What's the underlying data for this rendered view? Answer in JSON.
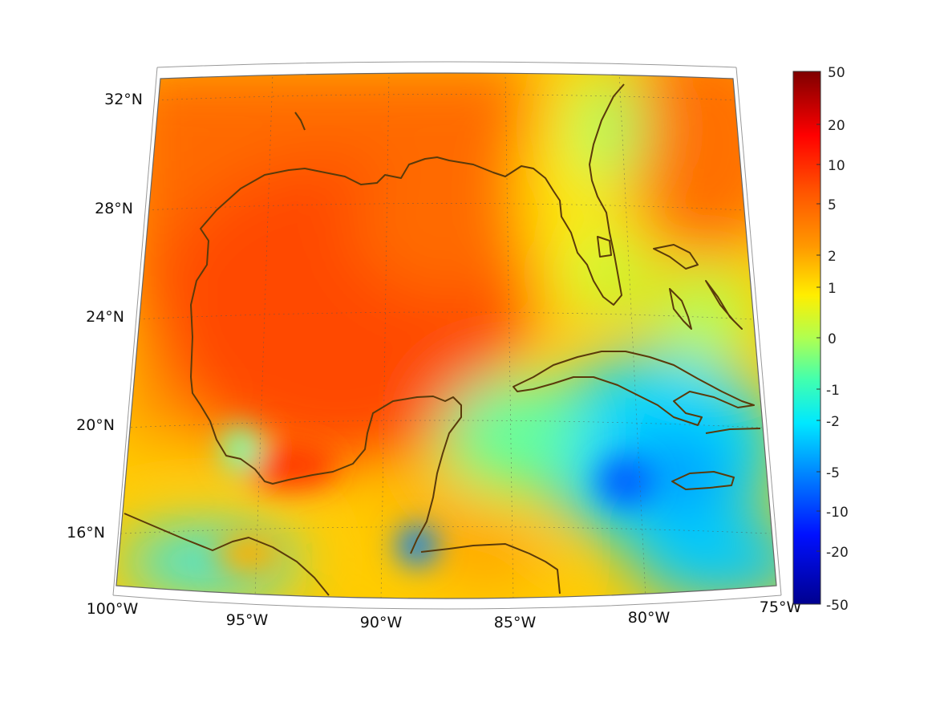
{
  "map": {
    "projection": "conic",
    "colormap": "jet",
    "coastline_color": "#5a3a0a",
    "lon_labels": [
      "100°W",
      "95°W",
      "90°W",
      "85°W",
      "80°W",
      "75°W"
    ],
    "lat_labels": [
      "32°N",
      "28°N",
      "24°N",
      "20°N",
      "16°N"
    ],
    "extent": {
      "lon_min": -100,
      "lon_max": -75,
      "lat_min": 14,
      "lat_max": 33
    }
  },
  "colorbar": {
    "tick_labels": [
      "50",
      "20",
      "10",
      "5",
      "2",
      "1",
      "0",
      "-1",
      "-2",
      "-5",
      "-10",
      "-20",
      "-50"
    ],
    "colors": [
      "#7f0000",
      "#ff0000",
      "#ff8000",
      "#ffff00",
      "#80ff80",
      "#00ffff",
      "#0080ff",
      "#0000ff",
      "#00008f"
    ]
  }
}
